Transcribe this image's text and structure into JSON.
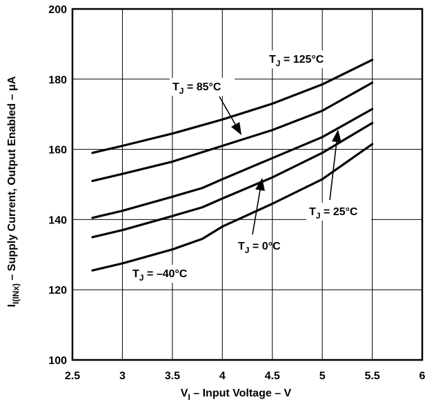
{
  "chart_data": {
    "type": "line",
    "title": "",
    "xlabel": {
      "main": "V",
      "sub": "I",
      "rest": " – Input Voltage – V"
    },
    "ylabel": {
      "main": "I",
      "sub": "I(INx)",
      "rest": "  – Supply Current, Output Enabled – μA"
    },
    "xlim": [
      2.5,
      6
    ],
    "ylim": [
      100,
      200
    ],
    "xticks": [
      2.5,
      3,
      3.5,
      4,
      4.5,
      5,
      5.5,
      6
    ],
    "xtick_labels": [
      "2.5",
      "3",
      "3.5",
      "4",
      "4.5",
      "5",
      "5.5",
      "6"
    ],
    "yticks": [
      100,
      120,
      140,
      160,
      180,
      200
    ],
    "ytick_labels": [
      "100",
      "120",
      "140",
      "160",
      "180",
      "200"
    ],
    "grid": true,
    "series": [
      {
        "name": "TJ = 125°C",
        "label_main": "T",
        "label_sub": "J",
        "label_rest": " = 125°C",
        "x": [
          2.7,
          3.0,
          3.5,
          4.0,
          4.5,
          5.0,
          5.5
        ],
        "y": [
          159.0,
          161.0,
          164.5,
          168.5,
          173.0,
          178.5,
          185.5
        ]
      },
      {
        "name": "TJ = 85°C",
        "label_main": "T",
        "label_sub": "J",
        "label_rest": " = 85°C",
        "x": [
          2.7,
          3.0,
          3.5,
          4.0,
          4.5,
          5.0,
          5.5
        ],
        "y": [
          151.0,
          153.0,
          156.5,
          161.0,
          165.5,
          171.0,
          179.0
        ]
      },
      {
        "name": "TJ = 25°C",
        "label_main": "T",
        "label_sub": "J",
        "label_rest": " = 25°C",
        "x": [
          2.7,
          3.0,
          3.5,
          3.8,
          4.0,
          4.5,
          5.0,
          5.5
        ],
        "y": [
          140.5,
          142.5,
          146.5,
          149.0,
          151.5,
          157.5,
          163.5,
          171.5
        ]
      },
      {
        "name": "TJ = 0°C",
        "label_main": "T",
        "label_sub": "J",
        "label_rest": " = 0°C",
        "x": [
          2.7,
          3.0,
          3.5,
          3.8,
          4.0,
          4.5,
          5.0,
          5.5
        ],
        "y": [
          135.0,
          137.0,
          141.0,
          143.5,
          146.0,
          152.0,
          159.0,
          167.5
        ]
      },
      {
        "name": "TJ = −40°C",
        "label_main": "T",
        "label_sub": "J",
        "label_rest": " = –40°C",
        "x": [
          2.7,
          3.0,
          3.5,
          3.8,
          4.0,
          4.5,
          5.0,
          5.5
        ],
        "y": [
          125.5,
          127.5,
          131.5,
          134.5,
          138.0,
          144.5,
          151.5,
          161.5
        ]
      }
    ]
  }
}
